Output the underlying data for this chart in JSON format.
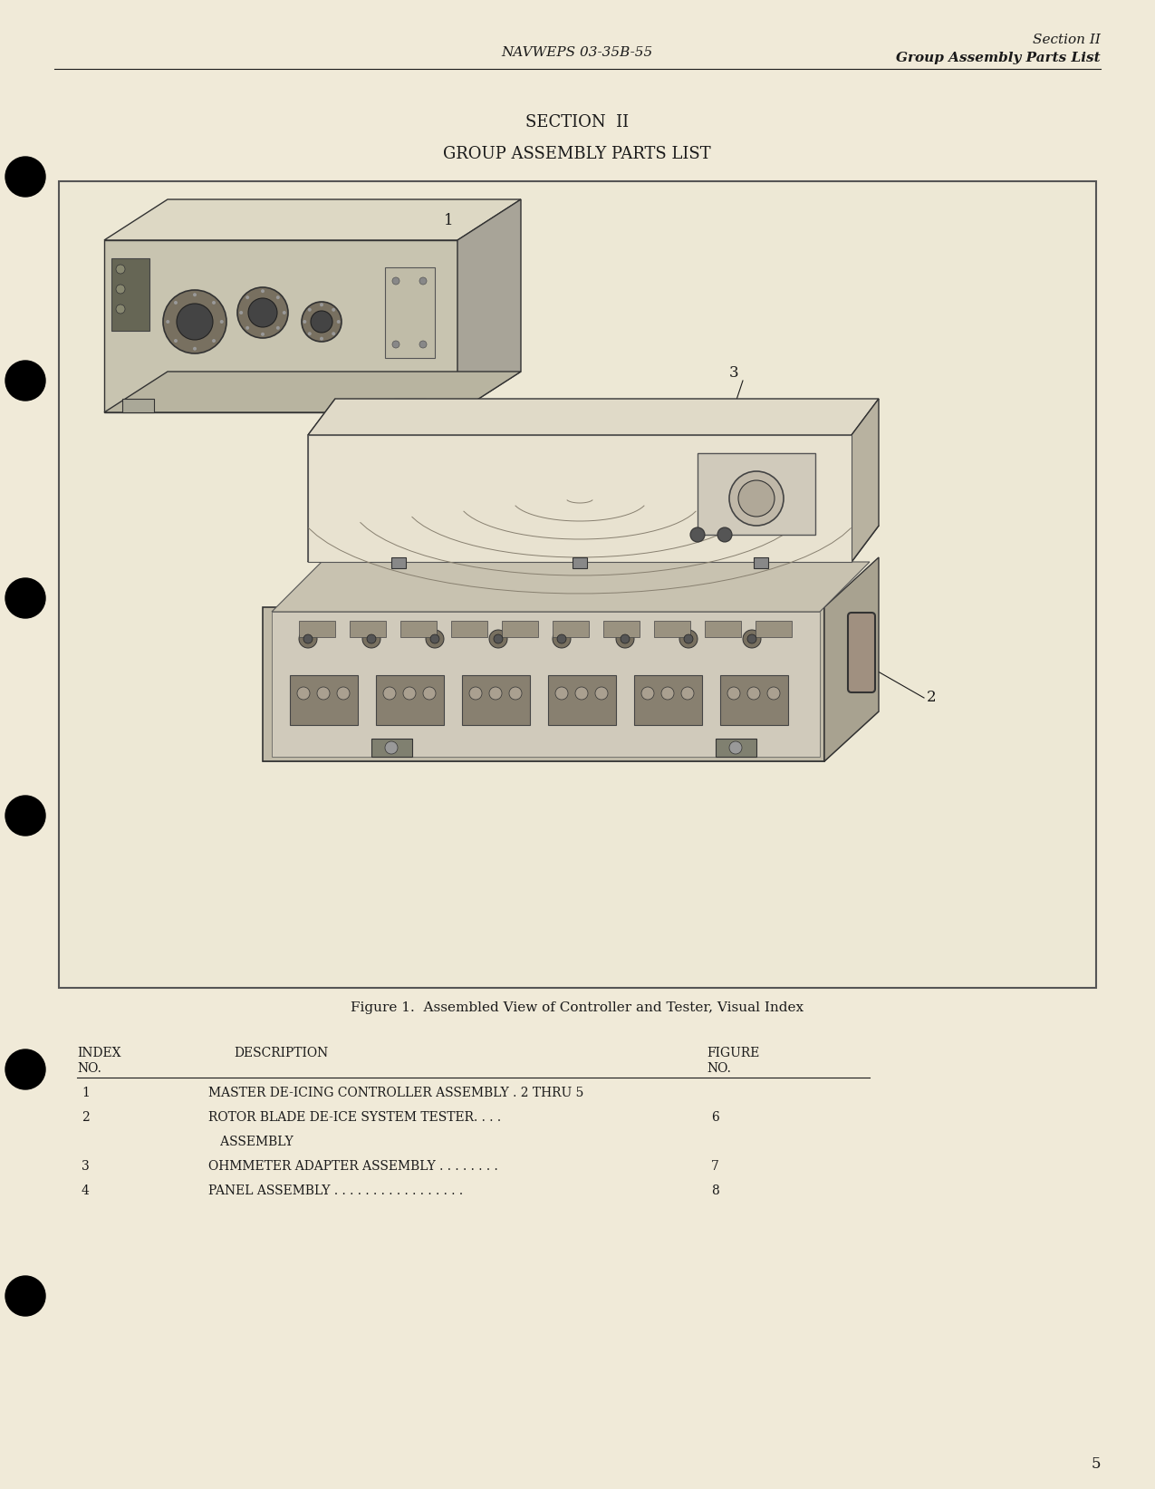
{
  "bg_color": "#f5f0e0",
  "page_color": "#f0ead8",
  "header_center": "NAVWEPS 03-35B-55",
  "header_right_line1": "Section II",
  "header_right_line2": "Group Assembly Parts List",
  "title_line1": "SECTION  II",
  "title_line2": "GROUP ASSEMBLY PARTS LIST",
  "figure_caption": "Figure 1.  Assembled View of Controller and Tester, Visual Index",
  "page_number": "5",
  "text_color": "#1a1a1a",
  "page_color2": "#ede8d5"
}
